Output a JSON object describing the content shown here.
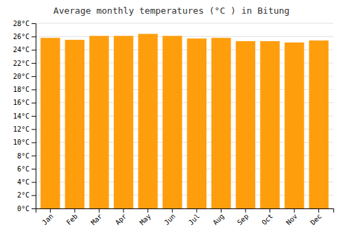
{
  "chart_data": {
    "type": "bar",
    "title": "Average monthly temperatures (°C ) in Bitung",
    "categories": [
      "Jan",
      "Feb",
      "Mar",
      "Apr",
      "May",
      "Jun",
      "Jul",
      "Aug",
      "Sep",
      "Oct",
      "Nov",
      "Dec"
    ],
    "values": [
      25.8,
      25.5,
      26.1,
      26.1,
      26.4,
      26.1,
      25.7,
      25.8,
      25.3,
      25.3,
      25.1,
      25.4
    ],
    "color": "#ff9e0d",
    "ylim": [
      0,
      28
    ],
    "yticks": [
      {
        "value": 0,
        "label": "0°C"
      },
      {
        "value": 2,
        "label": "2°C"
      },
      {
        "value": 4,
        "label": "4°C"
      },
      {
        "value": 6,
        "label": "6°C"
      },
      {
        "value": 8,
        "label": "8°C"
      },
      {
        "value": 10,
        "label": "10°C"
      },
      {
        "value": 12,
        "label": "12°C"
      },
      {
        "value": 14,
        "label": "14°C"
      },
      {
        "value": 16,
        "label": "16°C"
      },
      {
        "value": 18,
        "label": "18°C"
      },
      {
        "value": 20,
        "label": "20°C"
      },
      {
        "value": 22,
        "label": "22°C"
      },
      {
        "value": 24,
        "label": "24°C"
      },
      {
        "value": 26,
        "label": "26°C"
      },
      {
        "value": 28,
        "label": "28°C"
      }
    ],
    "grid": true
  }
}
